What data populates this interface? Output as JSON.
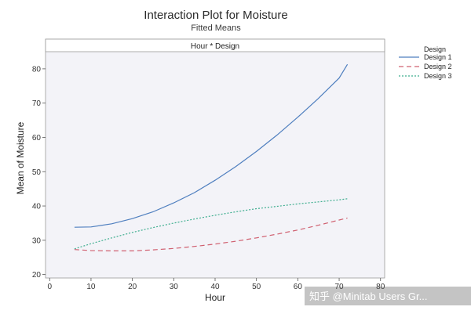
{
  "chart_data": {
    "type": "line",
    "title": "Interaction Plot for Moisture",
    "subtitle": "Fitted Means",
    "panel_label": "Hour * Design",
    "xlabel": "Hour",
    "ylabel": "Mean of Moisture",
    "xlim": [
      -1,
      81
    ],
    "ylim": [
      19,
      85
    ],
    "x_ticks": [
      0,
      10,
      20,
      30,
      40,
      50,
      60,
      70,
      80
    ],
    "y_ticks": [
      20,
      30,
      40,
      50,
      60,
      70,
      80
    ],
    "grid": false,
    "legend": {
      "title": "Design",
      "position": "top-right"
    },
    "series": [
      {
        "name": "Design 1",
        "color": "#4f7fbf",
        "dash": "solid",
        "x": [
          6,
          10,
          15,
          20,
          25,
          30,
          35,
          40,
          45,
          50,
          55,
          60,
          65,
          70,
          72
        ],
        "y": [
          33.8,
          33.9,
          34.8,
          36.3,
          38.3,
          40.9,
          43.9,
          47.5,
          51.5,
          55.9,
          60.7,
          65.9,
          71.4,
          77.3,
          81.3
        ]
      },
      {
        "name": "Design 2",
        "color": "#d06070",
        "dash": "dashed",
        "x": [
          6,
          10,
          15,
          20,
          25,
          30,
          35,
          40,
          45,
          50,
          55,
          60,
          65,
          70,
          72
        ],
        "y": [
          27.3,
          27.0,
          26.9,
          26.9,
          27.2,
          27.6,
          28.2,
          28.9,
          29.7,
          30.7,
          31.8,
          33.0,
          34.4,
          35.9,
          36.5
        ]
      },
      {
        "name": "Design 3",
        "color": "#3fae8f",
        "dash": "dotted",
        "x": [
          6,
          10,
          15,
          20,
          25,
          30,
          35,
          40,
          45,
          50,
          55,
          60,
          65,
          70,
          72
        ],
        "y": [
          27.5,
          29.0,
          30.7,
          32.3,
          33.7,
          35.0,
          36.2,
          37.3,
          38.3,
          39.2,
          39.9,
          40.6,
          41.2,
          41.8,
          42.1
        ]
      }
    ]
  },
  "watermark": "知乎 @Minitab Users Gr..."
}
